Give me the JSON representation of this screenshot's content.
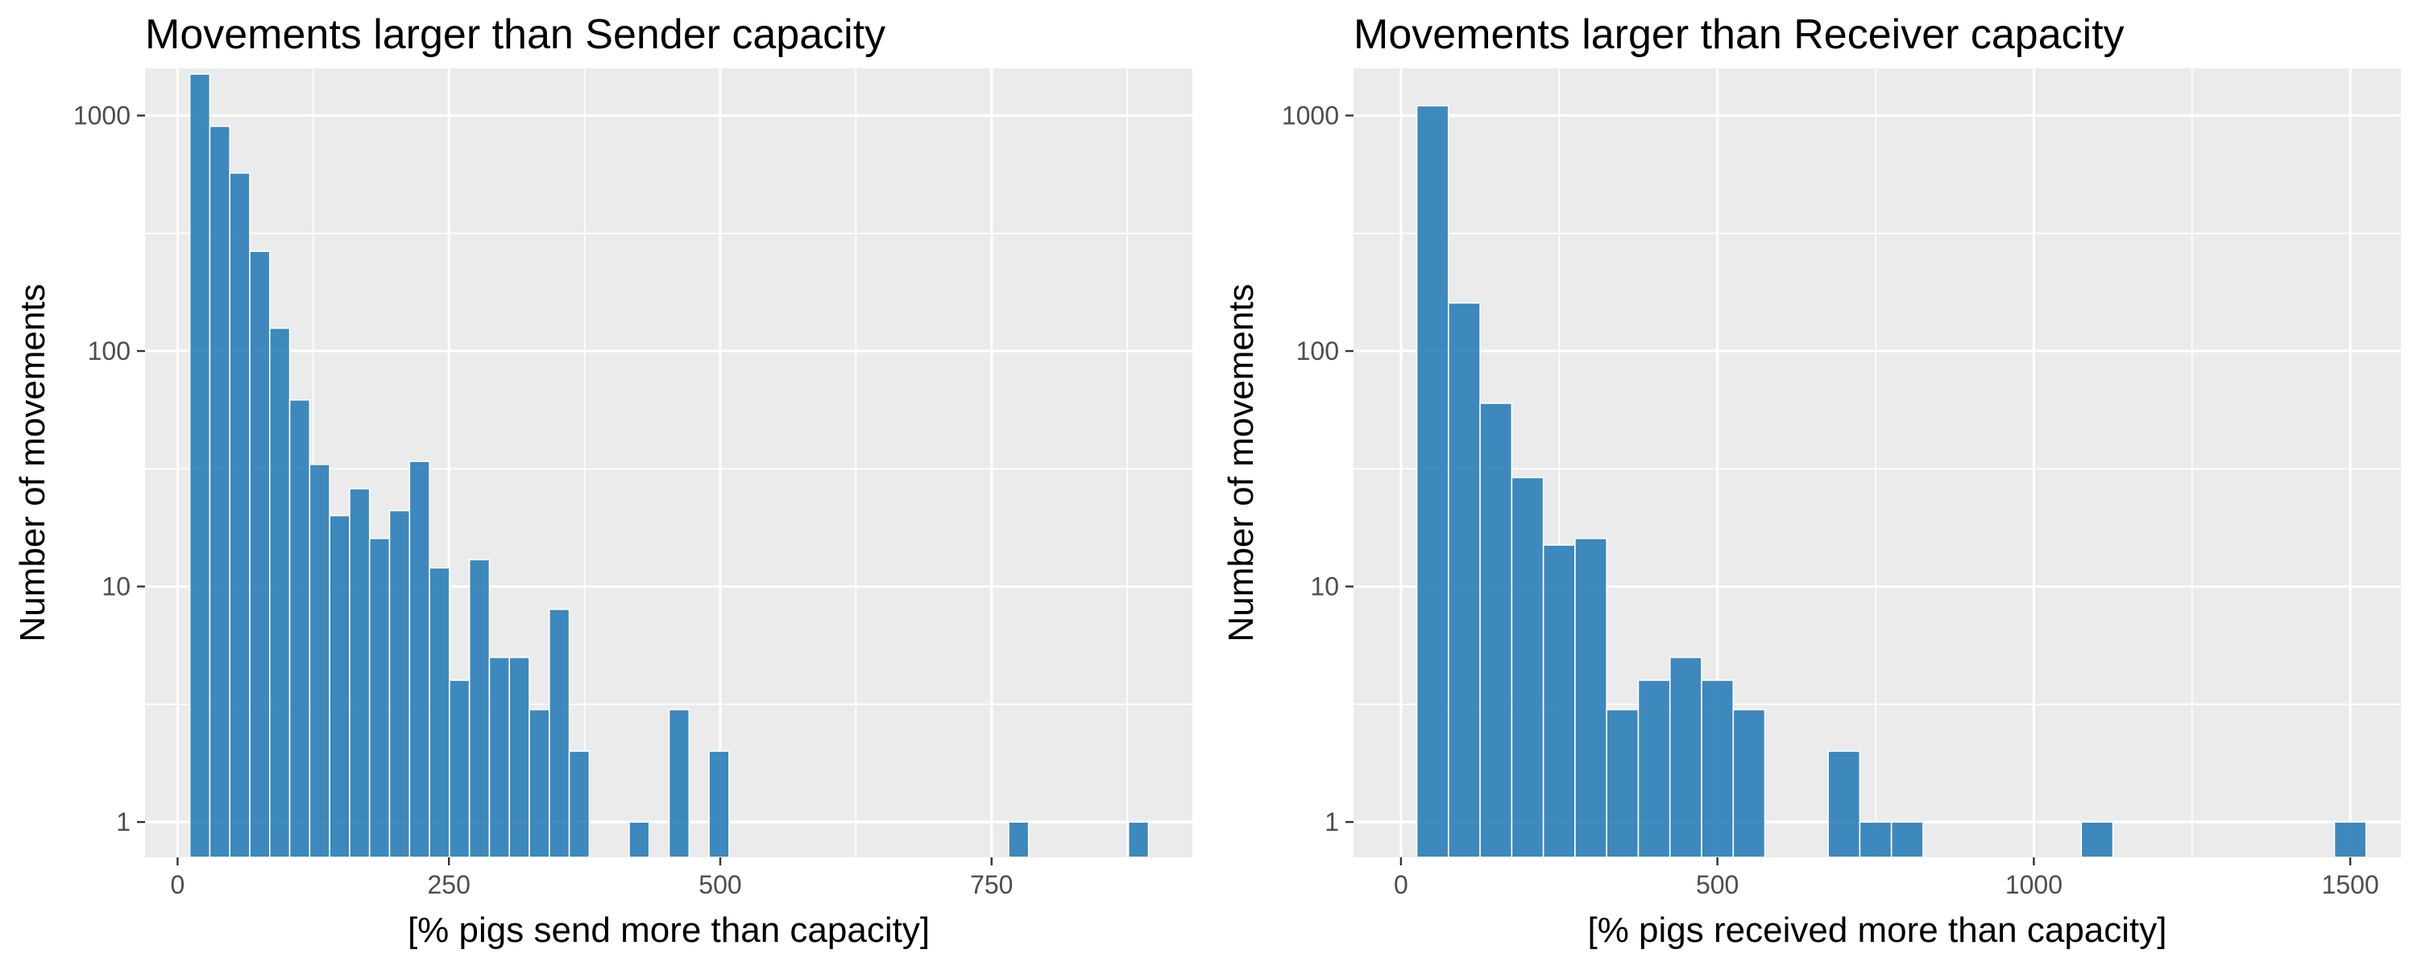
{
  "chart_data": [
    {
      "type": "bar",
      "title": "Movements larger than Sender capacity",
      "xlabel": "[% pigs send more than capacity]",
      "ylabel": "Number of movements",
      "y_scale": "log10",
      "xlim": [
        -30,
        935
      ],
      "ylim_log10": [
        -0.15,
        3.2
      ],
      "x_ticks": [
        0,
        250,
        500,
        750
      ],
      "x_tick_labels": [
        "0",
        "250",
        "500",
        "750"
      ],
      "y_ticks": [
        1,
        10,
        100,
        1000
      ],
      "y_tick_labels": [
        "1",
        "10",
        "100",
        "1000"
      ],
      "bin_width": 18.4,
      "bars": [
        {
          "x": 20.5,
          "value": 1500
        },
        {
          "x": 38.9,
          "value": 900
        },
        {
          "x": 57.3,
          "value": 570
        },
        {
          "x": 75.7,
          "value": 265
        },
        {
          "x": 94.1,
          "value": 125
        },
        {
          "x": 112.5,
          "value": 62
        },
        {
          "x": 130.9,
          "value": 33
        },
        {
          "x": 149.3,
          "value": 20
        },
        {
          "x": 167.7,
          "value": 26
        },
        {
          "x": 186.1,
          "value": 16
        },
        {
          "x": 204.5,
          "value": 21
        },
        {
          "x": 222.9,
          "value": 34
        },
        {
          "x": 241.3,
          "value": 12
        },
        {
          "x": 259.7,
          "value": 4
        },
        {
          "x": 278.1,
          "value": 13
        },
        {
          "x": 296.5,
          "value": 5
        },
        {
          "x": 314.9,
          "value": 5
        },
        {
          "x": 333.3,
          "value": 3
        },
        {
          "x": 351.7,
          "value": 8
        },
        {
          "x": 370.1,
          "value": 2
        },
        {
          "x": 425.3,
          "value": 1
        },
        {
          "x": 462.1,
          "value": 3
        },
        {
          "x": 498.9,
          "value": 2
        },
        {
          "x": 774.9,
          "value": 1
        },
        {
          "x": 885.3,
          "value": 1
        }
      ]
    },
    {
      "type": "bar",
      "title": "Movements larger than Receiver capacity",
      "xlabel": "[% pigs received more than capacity]",
      "ylabel": "Number of movements",
      "y_scale": "log10",
      "xlim": [
        -75,
        1580
      ],
      "ylim_log10": [
        -0.15,
        3.2
      ],
      "x_ticks": [
        0,
        500,
        1000,
        1500
      ],
      "x_tick_labels": [
        "0",
        "500",
        "1000",
        "1500"
      ],
      "y_ticks": [
        1,
        10,
        100,
        1000
      ],
      "y_tick_labels": [
        "1",
        "10",
        "100",
        "1000"
      ],
      "bin_width": 50,
      "bars": [
        {
          "x": 50,
          "value": 1100
        },
        {
          "x": 100,
          "value": 160
        },
        {
          "x": 150,
          "value": 60
        },
        {
          "x": 200,
          "value": 29
        },
        {
          "x": 250,
          "value": 15
        },
        {
          "x": 300,
          "value": 16
        },
        {
          "x": 350,
          "value": 3
        },
        {
          "x": 400,
          "value": 4
        },
        {
          "x": 450,
          "value": 5
        },
        {
          "x": 500,
          "value": 4
        },
        {
          "x": 550,
          "value": 3
        },
        {
          "x": 700,
          "value": 2
        },
        {
          "x": 750,
          "value": 1
        },
        {
          "x": 800,
          "value": 1
        },
        {
          "x": 1100,
          "value": 1
        },
        {
          "x": 1500,
          "value": 1
        }
      ]
    }
  ]
}
